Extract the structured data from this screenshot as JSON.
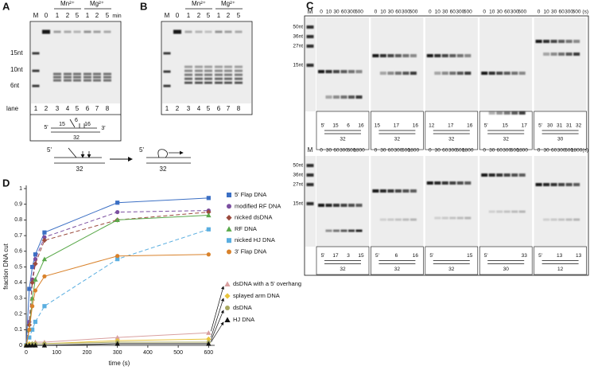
{
  "panel_a": {
    "label": "A",
    "header": [
      "M",
      "0",
      "1",
      "2",
      "5",
      "1",
      "2",
      "5"
    ],
    "unit": "min",
    "metals": [
      "Mn²⁺",
      "Mg²⁺"
    ],
    "markers": [
      "15nt",
      "10nt",
      "6nt"
    ],
    "lane_title": "lane",
    "lanes": [
      "1",
      "2",
      "3",
      "4",
      "5",
      "6",
      "7",
      "8"
    ],
    "substrate": [
      "5'",
      "15",
      "6",
      "16",
      "3'",
      "32"
    ]
  },
  "panel_b": {
    "label": "B",
    "header": [
      "M",
      "0",
      "1",
      "2",
      "5",
      "1",
      "2",
      "5"
    ],
    "metals": [
      "Mn²⁺",
      "Mg²⁺"
    ],
    "lanes": [
      "1",
      "2",
      "3",
      "4",
      "5",
      "6",
      "7",
      "8"
    ]
  },
  "scheme": [
    "5'",
    "32",
    "5'",
    "32"
  ],
  "panel_c": {
    "label": "C",
    "top": {
      "marker_lane": "M",
      "header": [
        "0",
        "10",
        "30",
        "60",
        "300",
        "600"
      ],
      "unit": "(s)",
      "markers": [
        "50nt",
        "36nt",
        "27nt",
        "15nt"
      ],
      "diagrams": [
        [
          "5'",
          "15",
          "6",
          "16",
          "32"
        ],
        [
          "15",
          "17",
          "16",
          "32"
        ],
        [
          "12",
          "17",
          "16",
          "32"
        ],
        [
          "5'",
          "15",
          "17",
          "32"
        ],
        [
          "5'",
          "30",
          "31",
          "31",
          "32",
          "30"
        ]
      ]
    },
    "bottom": {
      "marker_lane": "M",
      "header": [
        "0",
        "30",
        "60",
        "300",
        "600",
        "1800"
      ],
      "unit": "(s)",
      "markers": [
        "50nt",
        "36nt",
        "27nt",
        "15nt"
      ],
      "diagrams": [
        [
          "5'",
          "17",
          "3",
          "15",
          "32"
        ],
        [
          "5'",
          "6",
          "16",
          "32"
        ],
        [
          "5'",
          "15",
          "32"
        ],
        [
          "5'",
          "33",
          "30"
        ],
        [
          "5'",
          "13",
          "13",
          "12"
        ]
      ]
    }
  },
  "chart_data": {
    "type": "line",
    "label": "D",
    "x_label": "time (s)",
    "y_label": "fraction DNA cut",
    "x": [
      0,
      10,
      20,
      30,
      60,
      300,
      600
    ],
    "xlim": [
      0,
      620
    ],
    "xticks": [
      0,
      100,
      200,
      300,
      400,
      500,
      600
    ],
    "ylim": [
      0,
      1
    ],
    "yticks": [
      0,
      0.1,
      0.2,
      0.3,
      0.4,
      0.5,
      0.6,
      0.7,
      0.8,
      0.9,
      1
    ],
    "series": [
      {
        "name": "5' Flap DNA",
        "color": "#3b6fc4",
        "marker": "square",
        "dashed": false,
        "values": [
          0,
          0.36,
          0.5,
          0.58,
          0.72,
          0.91,
          0.94
        ]
      },
      {
        "name": "modified RF DNA",
        "color": "#7b4fa0",
        "marker": "circle",
        "dashed": true,
        "values": [
          0,
          0.15,
          0.42,
          0.55,
          0.69,
          0.85,
          0.86
        ]
      },
      {
        "name": "nicked dsDNA",
        "color": "#9b4a3d",
        "marker": "diamond",
        "dashed": true,
        "values": [
          0,
          0.13,
          0.4,
          0.52,
          0.67,
          0.8,
          0.85
        ]
      },
      {
        "name": "RF DNA",
        "color": "#5aa94a",
        "marker": "triangle",
        "dashed": false,
        "values": [
          0,
          0.1,
          0.3,
          0.42,
          0.55,
          0.8,
          0.83
        ]
      },
      {
        "name": "nicked HJ DNA",
        "color": "#5aaee0",
        "marker": "square",
        "dashed": true,
        "values": [
          0,
          0.05,
          0.1,
          0.15,
          0.25,
          0.55,
          0.74
        ]
      },
      {
        "name": "3' Flap DNA",
        "color": "#d9822b",
        "marker": "circle",
        "dashed": false,
        "values": [
          0,
          0.1,
          0.25,
          0.35,
          0.44,
          0.57,
          0.58
        ]
      },
      {
        "name": "dsDNA with a 5' overhang",
        "color": "#d9a0a0",
        "marker": "triangle",
        "dashed": false,
        "values": [
          0,
          0.01,
          0.01,
          0.02,
          0.02,
          0.05,
          0.08
        ]
      },
      {
        "name": "splayed arm DNA",
        "color": "#e8c43a",
        "marker": "diamond",
        "dashed": false,
        "values": [
          0,
          0.01,
          0.01,
          0.01,
          0.01,
          0.03,
          0.04
        ]
      },
      {
        "name": "dsDNA",
        "color": "#a8a860",
        "marker": "circle",
        "dashed": false,
        "values": [
          0,
          0,
          0.01,
          0.01,
          0.01,
          0.02,
          0.02
        ]
      },
      {
        "name": "HJ DNA",
        "color": "#111111",
        "marker": "triangle",
        "dashed": false,
        "values": [
          0,
          0,
          0,
          0,
          0,
          0.01,
          0.01
        ]
      }
    ]
  }
}
